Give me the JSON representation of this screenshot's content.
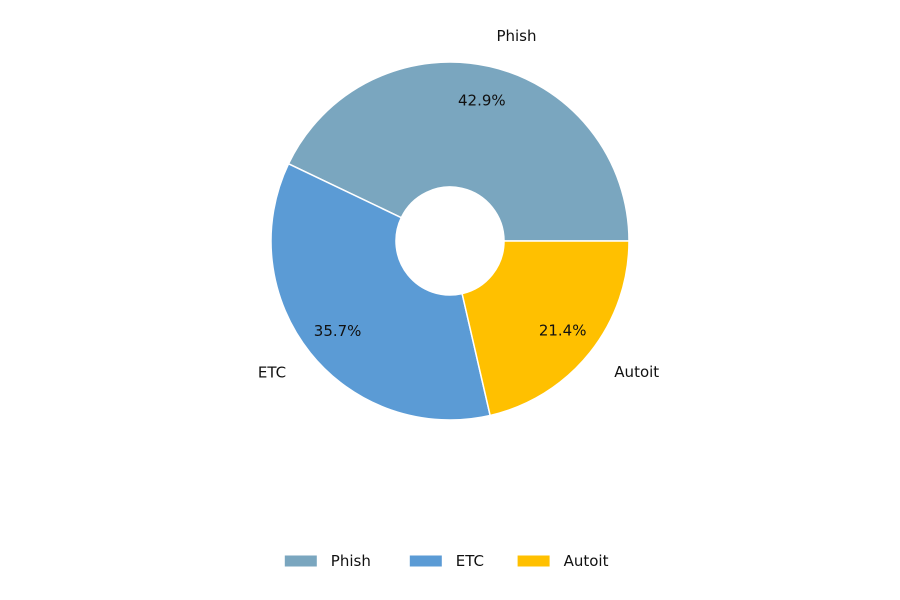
{
  "chart_data": {
    "type": "pie",
    "donut": true,
    "title": "",
    "categories": [
      "Phish",
      "ETC",
      "Autoit"
    ],
    "values": [
      42.9,
      35.7,
      21.4
    ],
    "percent_labels": [
      "42.9%",
      "35.7%",
      "21.4%"
    ],
    "colors": [
      "#7aa6bf",
      "#5b9bd5",
      "#ffc000"
    ],
    "legend": {
      "position": "bottom",
      "entries": [
        "Phish",
        "ETC",
        "Autoit"
      ]
    }
  }
}
